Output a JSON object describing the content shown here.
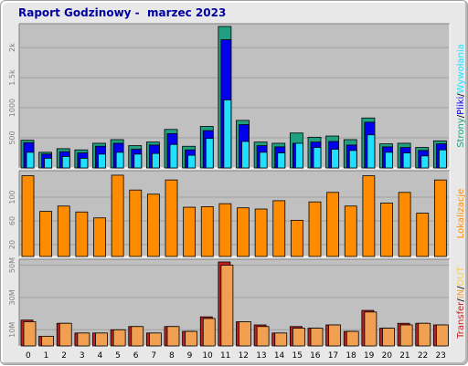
{
  "title": "Raport Godzinowy -  marzec 2023",
  "colors": {
    "frame_bg": "#e8e8e8",
    "plot_bg": "#c0c0c0",
    "grid": "#a0a0a0",
    "strony": "#20a080",
    "pliki": "#0000ee",
    "wywolania": "#20e0ff",
    "lokalizacje": "#ff8c00",
    "transfer": "#c02020",
    "in": "#f0a050",
    "out": "#f0d060"
  },
  "chart_data": [
    {
      "type": "bar",
      "panel": "strony-pliki-wywolania",
      "categories": [
        "0",
        "1",
        "2",
        "3",
        "4",
        "5",
        "6",
        "7",
        "8",
        "9",
        "10",
        "11",
        "12",
        "13",
        "14",
        "15",
        "16",
        "17",
        "18",
        "19",
        "20",
        "21",
        "22",
        "23"
      ],
      "ylim": [
        0,
        2350
      ],
      "yticks": [
        500,
        1000,
        1500,
        2000
      ],
      "ytick_labels": [
        "500",
        "1000",
        "1.5k",
        "2k"
      ],
      "grid": true,
      "legend_label_parts": [
        {
          "text": "Strony",
          "series": "strony"
        },
        {
          "text": "/",
          "series": "sep"
        },
        {
          "text": "Pliki",
          "series": "pliki"
        },
        {
          "text": "/",
          "series": "sep"
        },
        {
          "text": "Wywołania",
          "series": "wywolania"
        }
      ],
      "series": [
        {
          "key": "strony",
          "values": [
            460,
            260,
            320,
            300,
            410,
            470,
            370,
            430,
            640,
            360,
            690,
            2350,
            790,
            430,
            410,
            580,
            510,
            530,
            470,
            830,
            400,
            410,
            340,
            450
          ]
        },
        {
          "key": "pliki",
          "values": [
            420,
            230,
            270,
            250,
            360,
            410,
            310,
            380,
            570,
            300,
            620,
            2130,
            720,
            370,
            350,
            410,
            430,
            440,
            380,
            760,
            350,
            340,
            290,
            400
          ]
        },
        {
          "key": "wywolania",
          "values": [
            260,
            160,
            190,
            160,
            230,
            260,
            230,
            240,
            390,
            210,
            490,
            1130,
            440,
            260,
            250,
            410,
            340,
            310,
            290,
            550,
            260,
            250,
            200,
            300
          ]
        }
      ]
    },
    {
      "type": "bar",
      "panel": "lokalizacje",
      "categories": [
        "0",
        "1",
        "2",
        "3",
        "4",
        "5",
        "6",
        "7",
        "8",
        "9",
        "10",
        "11",
        "12",
        "13",
        "14",
        "15",
        "16",
        "17",
        "18",
        "19",
        "20",
        "21",
        "22",
        "23"
      ],
      "ylim": [
        0,
        140
      ],
      "yticks": [
        20,
        60,
        100
      ],
      "ytick_labels": [
        "20",
        "60",
        "100"
      ],
      "grid": true,
      "legend_label_parts": [
        {
          "text": "Lokalizacje",
          "series": "lokalizacje"
        }
      ],
      "series": [
        {
          "key": "lokalizacje",
          "values": [
            136,
            76,
            85,
            75,
            65,
            137,
            112,
            105,
            129,
            83,
            84,
            89,
            82,
            80,
            94,
            61,
            92,
            108,
            85,
            136,
            90,
            108,
            73,
            129
          ]
        }
      ]
    },
    {
      "type": "bar",
      "panel": "transfer",
      "categories": [
        "0",
        "1",
        "2",
        "3",
        "4",
        "5",
        "6",
        "7",
        "8",
        "9",
        "10",
        "11",
        "12",
        "13",
        "14",
        "15",
        "16",
        "17",
        "18",
        "19",
        "20",
        "21",
        "22",
        "23"
      ],
      "ylim": [
        0,
        52
      ],
      "yticks": [
        10,
        30,
        50
      ],
      "ytick_labels": [
        "10M",
        "30M",
        "50M"
      ],
      "grid": true,
      "legend_label_parts": [
        {
          "text": "Transfer",
          "series": "transfer"
        },
        {
          "text": "/",
          "series": "sep"
        },
        {
          "text": "IN",
          "series": "in"
        },
        {
          "text": "/",
          "series": "sep"
        },
        {
          "text": "OUT",
          "series": "out"
        }
      ],
      "series": [
        {
          "key": "transfer",
          "values": [
            16,
            6,
            14,
            8,
            8,
            10,
            12,
            8,
            12,
            9,
            18,
            52,
            15,
            13,
            8,
            12,
            11,
            13,
            9,
            22,
            11,
            14,
            14,
            13
          ]
        },
        {
          "key": "in",
          "values": [
            15,
            6,
            14,
            8,
            8,
            10,
            12,
            8,
            12,
            9,
            17,
            50,
            15,
            12,
            8,
            11,
            11,
            13,
            9,
            21,
            11,
            13,
            14,
            13
          ]
        }
      ]
    }
  ]
}
